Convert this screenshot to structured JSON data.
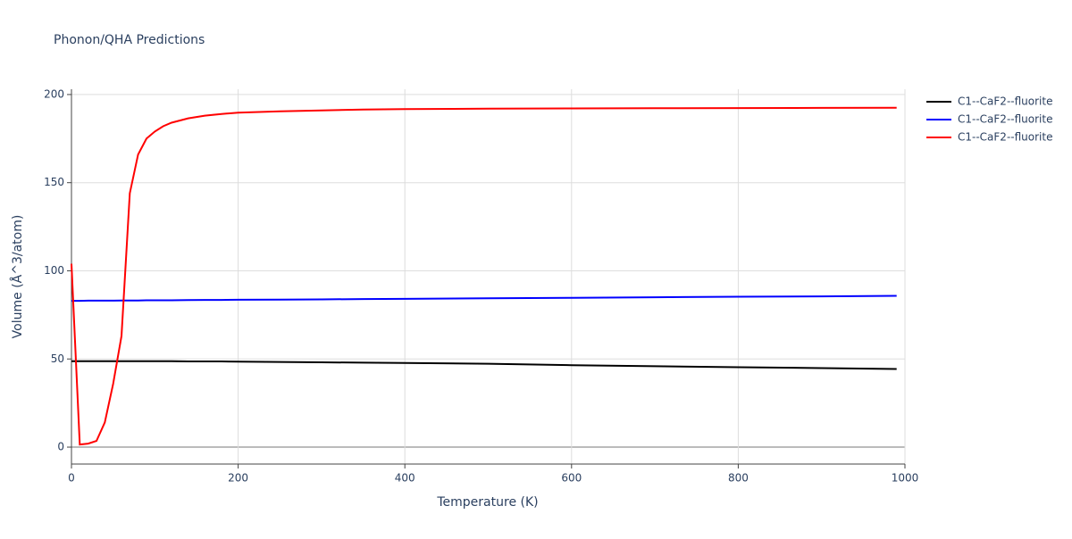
{
  "chart_data": {
    "type": "line",
    "title": "Phonon/QHA Predictions",
    "x_label": "Temperature (K)",
    "y_label": "Volume (Å^3/atom)",
    "x": [
      0,
      10,
      20,
      30,
      40,
      50,
      60,
      70,
      80,
      90,
      100,
      110,
      120,
      140,
      160,
      180,
      200,
      250,
      300,
      350,
      400,
      500,
      600,
      700,
      800,
      900,
      990
    ],
    "series": [
      {
        "name": "C1--CaF2--fluorite",
        "color": "#000000",
        "values": [
          48.7,
          48.7,
          48.7,
          48.7,
          48.7,
          48.7,
          48.7,
          48.7,
          48.7,
          48.7,
          48.7,
          48.7,
          48.7,
          48.6,
          48.6,
          48.6,
          48.5,
          48.3,
          48.1,
          47.9,
          47.7,
          47.3,
          46.5,
          45.9,
          45.3,
          44.8,
          44.3
        ]
      },
      {
        "name": "C1--CaF2--fluorite",
        "color": "#0000ff",
        "values": [
          83.0,
          83.0,
          83.1,
          83.1,
          83.1,
          83.1,
          83.2,
          83.2,
          83.2,
          83.3,
          83.3,
          83.3,
          83.3,
          83.4,
          83.5,
          83.5,
          83.6,
          83.7,
          83.8,
          84.0,
          84.1,
          84.4,
          84.7,
          85.0,
          85.3,
          85.5,
          85.8
        ]
      },
      {
        "name": "C1--CaF2--fluorite",
        "color": "#ff0000",
        "values": [
          104,
          1.5,
          2,
          3.5,
          14,
          36,
          63,
          144,
          166,
          175,
          179,
          182,
          184,
          186.5,
          188,
          189,
          189.7,
          190.5,
          191,
          191.5,
          191.7,
          192,
          192.1,
          192.2,
          192.3,
          192.4,
          192.5
        ]
      }
    ],
    "xlim": [
      0,
      1000
    ],
    "xticks": [
      0,
      200,
      400,
      600,
      800,
      1000
    ],
    "ylim": [
      -9.6,
      203
    ],
    "yticks": [
      0,
      50,
      100,
      150,
      200
    ],
    "grid": true,
    "legend": "right"
  }
}
